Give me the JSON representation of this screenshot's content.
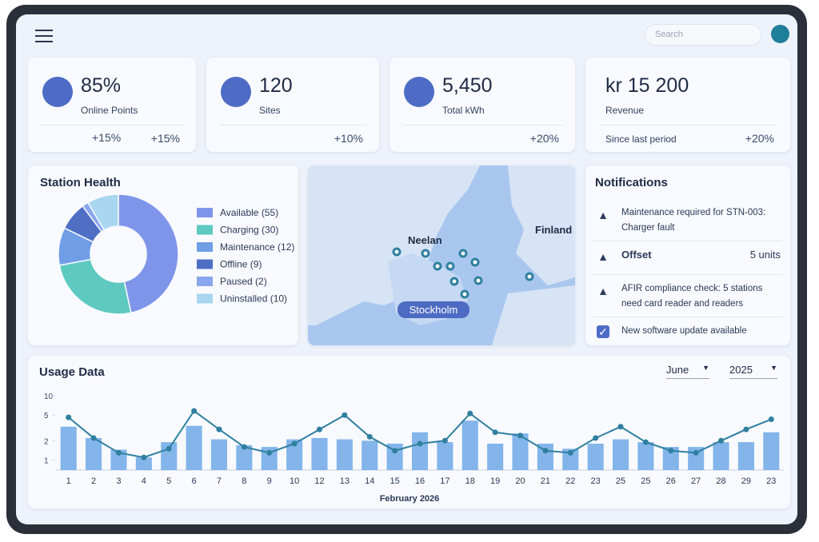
{
  "header": {
    "search_placeholder": "Search"
  },
  "kpis": [
    {
      "value": "85%",
      "label": "Online Points",
      "change_left": "+15%",
      "change": "+15%"
    },
    {
      "value": "120",
      "label": "Sites",
      "change": "+10%"
    },
    {
      "value": "5,450",
      "label": "Total kWh",
      "change": "+20%"
    },
    {
      "value": "kr 15 200",
      "label": "Revenue",
      "note": "Since last period",
      "change": "+20%"
    }
  ],
  "station_health": {
    "title": "Station Health",
    "chart": {
      "type": "donut",
      "categories": [
        "Available (55)",
        "Charging (30)",
        "Maintenance (12)",
        "Offline (9)",
        "Paused (2)",
        "Uninstalled (10)"
      ],
      "values": [
        55,
        30,
        12,
        9,
        2,
        10
      ],
      "colors": [
        "#7f95ea",
        "#5ec9c0",
        "#6f9ee6",
        "#4f6fc4",
        "#8aa6ec",
        "#a9d6f0"
      ]
    }
  },
  "map": {
    "labels": [
      "Neelan",
      "Finland",
      "Stockholm"
    ]
  },
  "notifications": {
    "title": "Notifications",
    "items": [
      {
        "text": "Maintenance required for STN-003: Charger fault"
      },
      {
        "text": "Offset",
        "detail": "5 units"
      },
      {
        "text": "AFIR compliance check: 5 stations need card reader and readers"
      },
      {
        "text": "New software update available"
      }
    ]
  },
  "usage": {
    "title": "Usage Data",
    "month": "June",
    "year": "2025",
    "chart": {
      "type": "bar_line",
      "categories": [
        "1",
        "2",
        "3",
        "4",
        "5",
        "6",
        "7",
        "8",
        "9",
        "10",
        "12",
        "13",
        "14",
        "15",
        "16",
        "17",
        "18",
        "19",
        "20",
        "21",
        "22",
        "23",
        "25",
        "25",
        "26",
        "27",
        "28",
        "29",
        "23"
      ],
      "xlabel": "February 2026",
      "log": true,
      "ylim": [
        0.7,
        10
      ],
      "yticks": [
        10,
        5,
        2,
        1
      ],
      "series": [
        {
          "type": "bar",
          "color": "#6ea8e6",
          "values": [
            3.3,
            2.2,
            1.45,
            1.1,
            1.9,
            3.4,
            2.1,
            1.7,
            1.6,
            2.1,
            2.2,
            2.1,
            2.0,
            1.8,
            2.7,
            1.9,
            4.1,
            1.8,
            2.6,
            1.8,
            1.5,
            1.8,
            2.1,
            1.9,
            1.6,
            1.6,
            1.9,
            1.9,
            2.7
          ]
        },
        {
          "type": "line",
          "color": "#2f7f9f",
          "values": [
            4.6,
            2.2,
            1.3,
            1.1,
            1.5,
            5.8,
            3.0,
            1.6,
            1.3,
            1.8,
            3.0,
            5.0,
            2.3,
            1.4,
            1.8,
            2.0,
            5.3,
            2.7,
            2.4,
            1.4,
            1.3,
            2.2,
            3.3,
            1.9,
            1.4,
            1.3,
            2.0,
            3.0,
            4.3
          ]
        }
      ]
    }
  }
}
